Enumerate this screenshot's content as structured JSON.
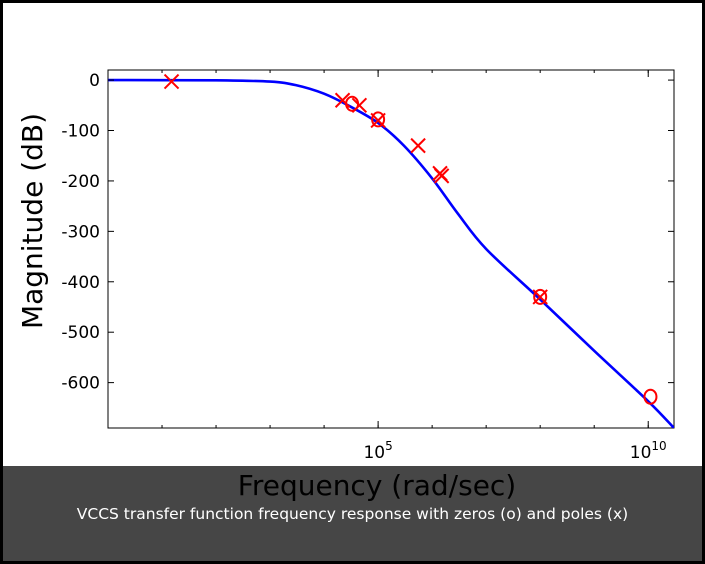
{
  "caption": "VCCS transfer function frequency response with zeros (o) and poles (x)",
  "chart_data": {
    "type": "line",
    "xlabel": "Frequency (rad/sec)",
    "ylabel": "Magnitude (dB)",
    "x_scale": "log",
    "xlim": [
      1,
      30000000000
    ],
    "ylim": [
      -690,
      20
    ],
    "grid": false,
    "x_ticks": [
      {
        "value": 100000,
        "base": "10",
        "exp": "5"
      },
      {
        "value": 10000000000,
        "base": "10",
        "exp": "10"
      }
    ],
    "y_ticks": [
      {
        "value": 0,
        "label": "0"
      },
      {
        "value": -100,
        "label": "-100"
      },
      {
        "value": -200,
        "label": "-200"
      },
      {
        "value": -300,
        "label": "-300"
      },
      {
        "value": -400,
        "label": "-400"
      },
      {
        "value": -500,
        "label": "-500"
      },
      {
        "value": -600,
        "label": "-600"
      }
    ],
    "series": [
      {
        "color": "#0000ff",
        "points": [
          [
            1,
            0
          ],
          [
            100,
            -0.5
          ],
          [
            1000,
            -3
          ],
          [
            3000,
            -10
          ],
          [
            10000,
            -27
          ],
          [
            30000,
            -52
          ],
          [
            100000,
            -85
          ],
          [
            300000,
            -130
          ],
          [
            1000000,
            -195
          ],
          [
            3000000,
            -265
          ],
          [
            10000000,
            -335
          ],
          [
            100000000,
            -435
          ],
          [
            1000000000,
            -537
          ],
          [
            10000000000,
            -637
          ],
          [
            30000000000,
            -690
          ]
        ]
      }
    ],
    "poles": [
      {
        "freq": 15,
        "mag": -3
      },
      {
        "freq": 22000,
        "mag": -40
      },
      {
        "freq": 45000,
        "mag": -50
      },
      {
        "freq": 100000,
        "mag": -80
      },
      {
        "freq": 550000,
        "mag": -130
      },
      {
        "freq": 1400000,
        "mag": -185
      },
      {
        "freq": 1500000,
        "mag": -190
      },
      {
        "freq": 100000000,
        "mag": -430
      }
    ],
    "zeros": [
      {
        "freq": 33000,
        "mag": -47
      },
      {
        "freq": 100000,
        "mag": -78
      },
      {
        "freq": 100000000,
        "mag": -430
      },
      {
        "freq": 11000000000,
        "mag": -628
      }
    ],
    "marker_color": "#ff0000"
  }
}
